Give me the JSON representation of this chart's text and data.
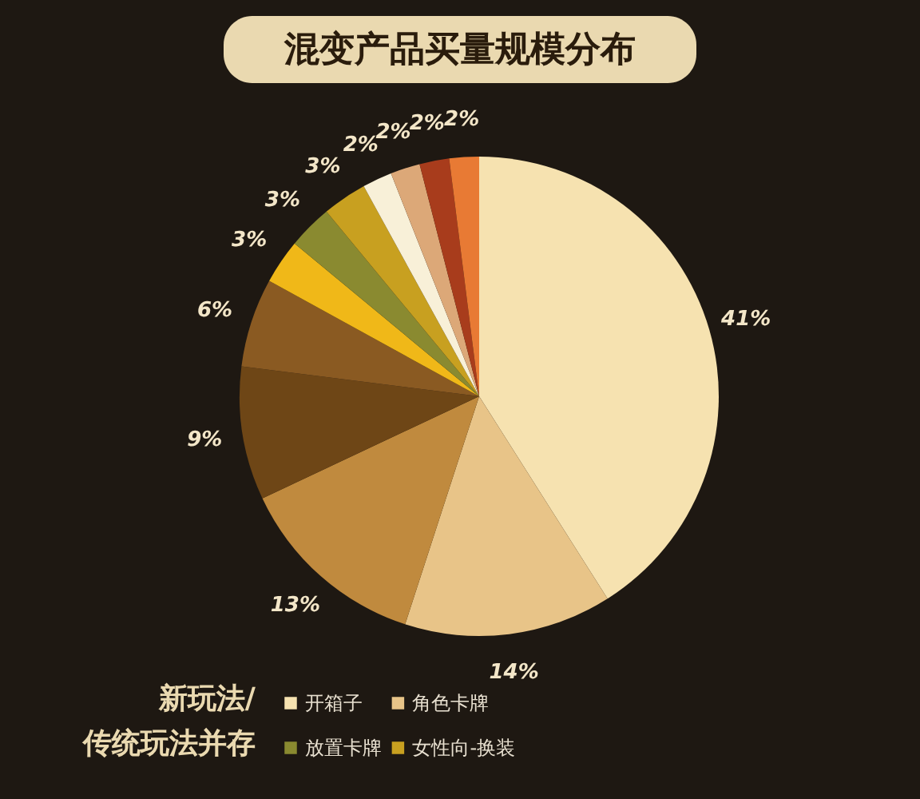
{
  "chart_data": {
    "type": "pie",
    "title": "混变产品买量规模分布",
    "legend_title": "新玩法/传统玩法并存",
    "legend": "bottom",
    "categories": [
      "开箱子",
      "角色卡牌",
      null,
      null,
      null,
      null,
      "放置卡牌",
      "女性向-换装",
      null,
      null,
      null,
      null
    ],
    "values": [
      41,
      14,
      13,
      9,
      6,
      3,
      3,
      3,
      2,
      2,
      2,
      2
    ],
    "value_labels": [
      "41%",
      "14%",
      "13%",
      "9%",
      "6%",
      "3%",
      "3%",
      "3%",
      "2%",
      "2%",
      "2%",
      "2%"
    ],
    "colors": [
      "#f6e2b0",
      "#e8c488",
      "#c08a3e",
      "#6e4616",
      "#8a5a22",
      "#f0b818",
      "#8a8a30",
      "#c8a020",
      "#f8f0d8",
      "#dca878",
      "#a83c1c",
      "#e87a34"
    ]
  }
}
